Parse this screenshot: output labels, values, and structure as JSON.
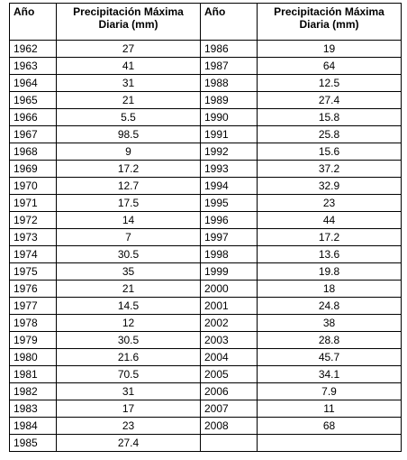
{
  "table": {
    "headers": [
      "Año",
      "Precipitación Máxima Diaria (mm)",
      "Año",
      "Precipitación Máxima Diaria (mm)"
    ],
    "left": [
      [
        "1962",
        "27"
      ],
      [
        "1963",
        "41"
      ],
      [
        "1964",
        "31"
      ],
      [
        "1965",
        "21"
      ],
      [
        "1966",
        "5.5"
      ],
      [
        "1967",
        "98.5"
      ],
      [
        "1968",
        "9"
      ],
      [
        "1969",
        "17.2"
      ],
      [
        "1970",
        "12.7"
      ],
      [
        "1971",
        "17.5"
      ],
      [
        "1972",
        "14"
      ],
      [
        "1973",
        "7"
      ],
      [
        "1974",
        "30.5"
      ],
      [
        "1975",
        "35"
      ],
      [
        "1976",
        "21"
      ],
      [
        "1977",
        "14.5"
      ],
      [
        "1978",
        "12"
      ],
      [
        "1979",
        "30.5"
      ],
      [
        "1980",
        "21.6"
      ],
      [
        "1981",
        "70.5"
      ],
      [
        "1982",
        "31"
      ],
      [
        "1983",
        "17"
      ],
      [
        "1984",
        "23"
      ],
      [
        "1985",
        "27.4"
      ]
    ],
    "right": [
      [
        "1986",
        "19"
      ],
      [
        "1987",
        "64"
      ],
      [
        "1988",
        "12.5"
      ],
      [
        "1989",
        "27.4"
      ],
      [
        "1990",
        "15.8"
      ],
      [
        "1991",
        "25.8"
      ],
      [
        "1992",
        "15.6"
      ],
      [
        "1993",
        "37.2"
      ],
      [
        "1994",
        "32.9"
      ],
      [
        "1995",
        "23"
      ],
      [
        "1996",
        "44"
      ],
      [
        "1997",
        "17.2"
      ],
      [
        "1998",
        "13.6"
      ],
      [
        "1999",
        "19.8"
      ],
      [
        "2000",
        "18"
      ],
      [
        "2001",
        "24.8"
      ],
      [
        "2002",
        "38"
      ],
      [
        "2003",
        "28.8"
      ],
      [
        "2004",
        "45.7"
      ],
      [
        "2005",
        "34.1"
      ],
      [
        "2006",
        "7.9"
      ],
      [
        "2007",
        "11"
      ],
      [
        "2008",
        "68"
      ]
    ]
  }
}
